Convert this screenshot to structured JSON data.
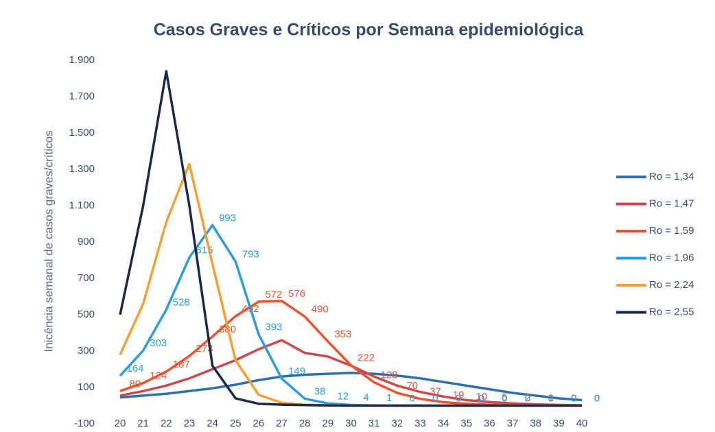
{
  "chart_data": {
    "type": "line",
    "title": "Casos Graves e Críticos por Semana epidemiológica",
    "y_label": "Inicência semanal de casos graves/críticos",
    "x": [
      20,
      21,
      22,
      23,
      24,
      25,
      26,
      27,
      28,
      29,
      30,
      31,
      32,
      33,
      34,
      35,
      36,
      37,
      38,
      39,
      40
    ],
    "xlim": [
      20,
      40
    ],
    "ylim": [
      -100,
      1900
    ],
    "yticks": [
      {
        "value": -100,
        "label": "-100"
      },
      100,
      300,
      500,
      700,
      900,
      {
        "value": 1100,
        "label": "1.100"
      },
      {
        "value": 1300,
        "label": "1.300"
      },
      {
        "value": 1500,
        "label": "1.500"
      },
      {
        "value": 1700,
        "label": "1.700"
      },
      {
        "value": 1900,
        "label": "1.900"
      }
    ],
    "legend": "right",
    "series": [
      {
        "name": "Ro = 1,34",
        "color": "#2e6fb0",
        "values": [
          45,
          55,
          65,
          80,
          95,
          115,
          140,
          160,
          170,
          175,
          180,
          175,
          165,
          150,
          130,
          110,
          90,
          70,
          55,
          40,
          30
        ]
      },
      {
        "name": "Ro = 1,47",
        "color": "#d0474a",
        "values": [
          55,
          80,
          110,
          150,
          200,
          250,
          310,
          360,
          290,
          270,
          220,
          160,
          110,
          75,
          50,
          30,
          20,
          12,
          7,
          4,
          2
        ]
      },
      {
        "name": "Ro = 1,59",
        "color": "#f0502a",
        "show_labels": true,
        "values": [
          80,
          124,
          187,
          273,
          380,
          492,
          572,
          576,
          490,
          353,
          222,
          128,
          70,
          37,
          19,
          10,
          5,
          2,
          1,
          0,
          0
        ]
      },
      {
        "name": "Ro = 1,96",
        "color": "#2a9de0",
        "show_labels": true,
        "values": [
          164,
          303,
          528,
          815,
          993,
          793,
          393,
          149,
          38,
          12,
          4,
          1,
          0,
          0,
          0,
          0,
          0,
          0,
          0,
          0,
          0
        ]
      },
      {
        "name": "Ro = 2,24",
        "color": "#f5a030",
        "values": [
          280,
          560,
          1010,
          1330,
          780,
          250,
          60,
          15,
          5,
          2,
          1,
          0,
          0,
          0,
          0,
          0,
          0,
          0,
          0,
          0,
          0
        ]
      },
      {
        "name": "Ro = 2,55",
        "color": "#1b2a4a",
        "values": [
          500,
          1100,
          1840,
          1100,
          220,
          40,
          10,
          5,
          3,
          1,
          0,
          0,
          0,
          0,
          0,
          0,
          0,
          0,
          0,
          0,
          0
        ]
      }
    ]
  }
}
